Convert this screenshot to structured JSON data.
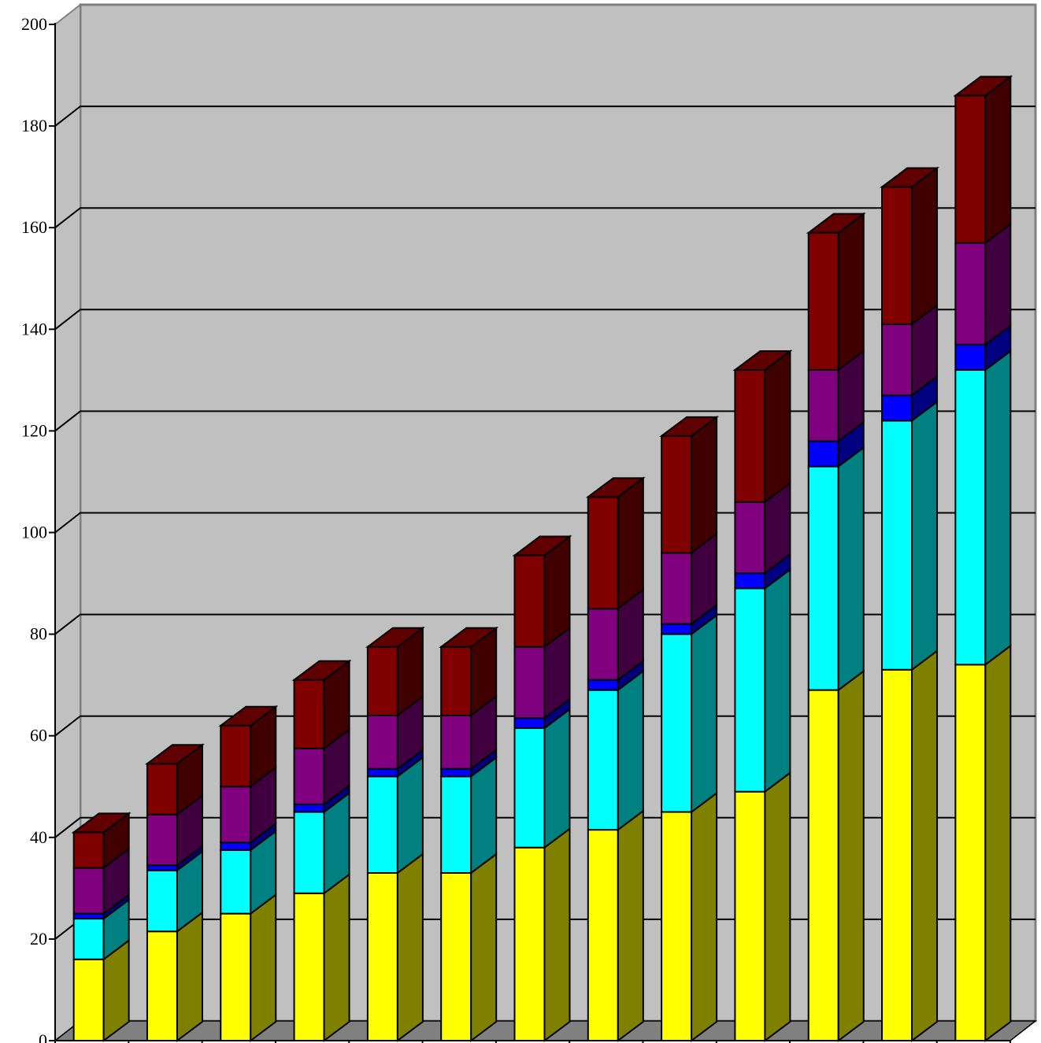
{
  "chart_data": {
    "type": "bar",
    "stacked": true,
    "three_d": true,
    "title": "",
    "xlabel": "",
    "ylabel": "",
    "ylim": [
      0,
      200
    ],
    "y_ticks": [
      0,
      20,
      40,
      60,
      80,
      100,
      120,
      140,
      160,
      180,
      200
    ],
    "grid": true,
    "legend": "none",
    "categories": [
      "",
      "",
      "",
      "",
      "",
      "",
      "",
      "",
      "",
      "",
      "",
      "",
      ""
    ],
    "series": [
      {
        "color": "#ffff00",
        "values": [
          16,
          21.5,
          25,
          29,
          33,
          33,
          38,
          41.5,
          45,
          49,
          69,
          73,
          74
        ]
      },
      {
        "color": "#00ffff",
        "values": [
          8,
          12,
          12.5,
          16,
          19,
          19,
          23.5,
          27.5,
          35,
          40,
          44,
          49,
          58
        ]
      },
      {
        "color": "#0000ff",
        "values": [
          1,
          1,
          1.5,
          1.5,
          1.5,
          1.5,
          2,
          2,
          2,
          3,
          5,
          5,
          5
        ]
      },
      {
        "color": "#800080",
        "values": [
          9,
          10,
          11,
          11,
          10.5,
          10.5,
          14,
          14,
          14,
          14,
          14,
          14,
          20
        ]
      },
      {
        "color": "#800000",
        "values": [
          7,
          10,
          12,
          13.5,
          13.5,
          13.5,
          18,
          22,
          23,
          26,
          27,
          27,
          29
        ]
      }
    ],
    "colors": {
      "wall": "#c0c0c0",
      "floor": "#808080",
      "gridline": "#000000",
      "side_wall": "#c0c0c0"
    }
  }
}
